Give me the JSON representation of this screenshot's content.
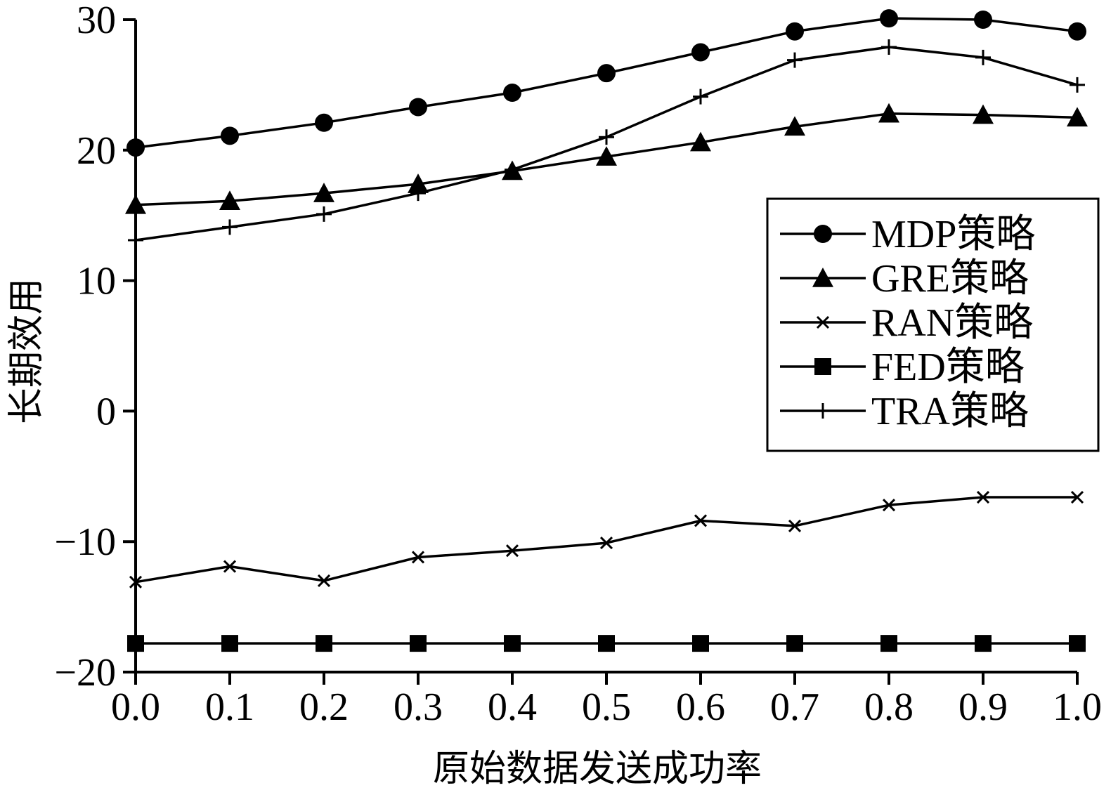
{
  "chart_data": {
    "type": "line",
    "title": "",
    "xlabel": "原始数据发送成功率",
    "ylabel": "长期效用",
    "xlim": [
      0.0,
      1.0
    ],
    "ylim": [
      -20,
      30
    ],
    "x_ticks": [
      "0.0",
      "0.1",
      "0.2",
      "0.3",
      "0.4",
      "0.5",
      "0.6",
      "0.7",
      "0.8",
      "0.9",
      "1.0"
    ],
    "y_ticks": [
      "30",
      "20",
      "10",
      "0",
      "−10",
      "−20"
    ],
    "x": [
      0.0,
      0.1,
      0.2,
      0.3,
      0.4,
      0.5,
      0.6,
      0.7,
      0.8,
      0.9,
      1.0
    ],
    "legend_position": "right",
    "series": [
      {
        "name": "MDP策略",
        "marker": "circle",
        "values": [
          20.2,
          21.1,
          22.1,
          23.3,
          24.4,
          25.9,
          27.5,
          29.1,
          30.1,
          30.0,
          29.1
        ]
      },
      {
        "name": "GRE策略",
        "marker": "triangle",
        "values": [
          15.8,
          16.1,
          16.7,
          17.4,
          18.4,
          19.5,
          20.6,
          21.8,
          22.8,
          22.7,
          22.5
        ]
      },
      {
        "name": "RAN策略",
        "marker": "x",
        "values": [
          -13.1,
          -11.9,
          -13.0,
          -11.2,
          -10.7,
          -10.1,
          -8.4,
          -8.8,
          -7.2,
          -6.6,
          -6.6
        ]
      },
      {
        "name": "FED策略",
        "marker": "square",
        "values": [
          -17.8,
          -17.8,
          -17.8,
          -17.8,
          -17.8,
          -17.8,
          -17.8,
          -17.8,
          -17.8,
          -17.8,
          -17.8
        ]
      },
      {
        "name": "TRA策略",
        "marker": "plus",
        "values": [
          13.1,
          14.1,
          15.1,
          16.7,
          18.5,
          21.0,
          24.1,
          26.9,
          27.9,
          27.1,
          25.0
        ]
      }
    ],
    "colors": {
      "line": "#000000",
      "background": "#ffffff"
    }
  }
}
